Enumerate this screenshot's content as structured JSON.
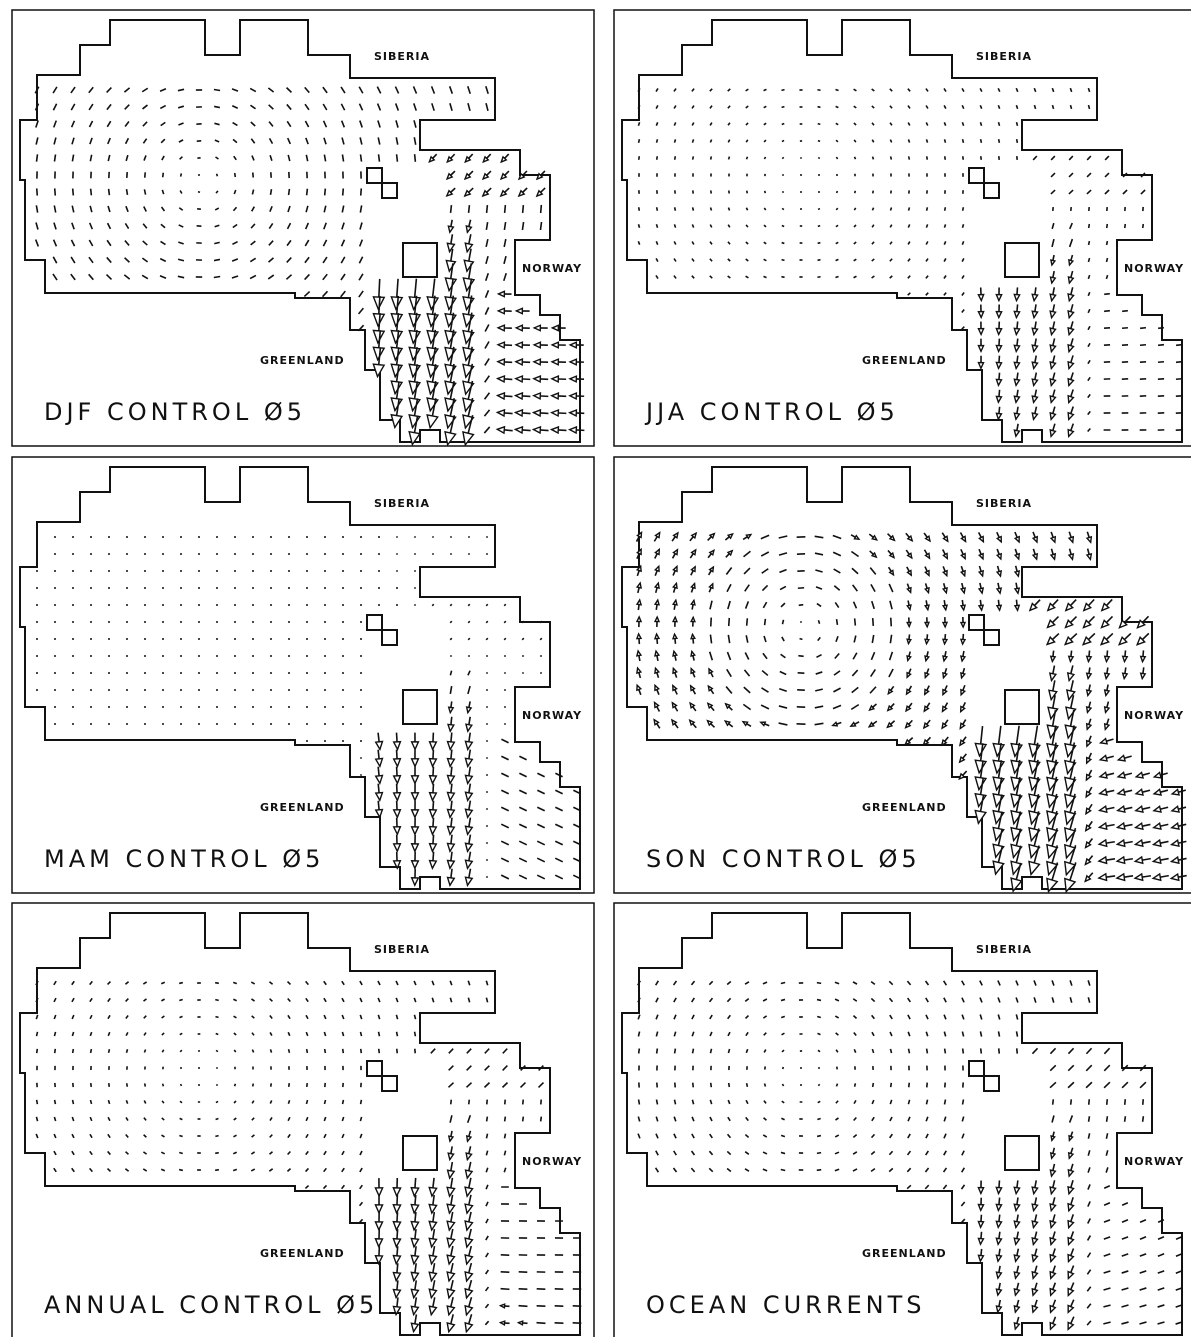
{
  "panels": [
    {
      "title": "DJF CONTROL Ø5",
      "siberia": "SIBERIA",
      "norway": "NORWAY",
      "greenland": "GREENLAND"
    },
    {
      "title": "JJA CONTROL Ø5",
      "siberia": "SIBERIA",
      "norway": "NORWAY",
      "greenland": "GREENLAND"
    },
    {
      "title": "MAM CONTROL Ø5",
      "siberia": "SIBERIA",
      "norway": "NORWAY",
      "greenland": "GREENLAND"
    },
    {
      "title": "SON CONTROL Ø5",
      "siberia": "SIBERIA",
      "norway": "NORWAY",
      "greenland": "GREENLAND"
    },
    {
      "title": "ANNUAL CONTROL Ø5",
      "siberia": "SIBERIA",
      "norway": "NORWAY",
      "greenland": "GREENLAND"
    },
    {
      "title": "OCEAN CURRENTS",
      "siberia": "SIBERIA",
      "norway": "NORWAY",
      "greenland": "GREENLAND"
    }
  ]
}
